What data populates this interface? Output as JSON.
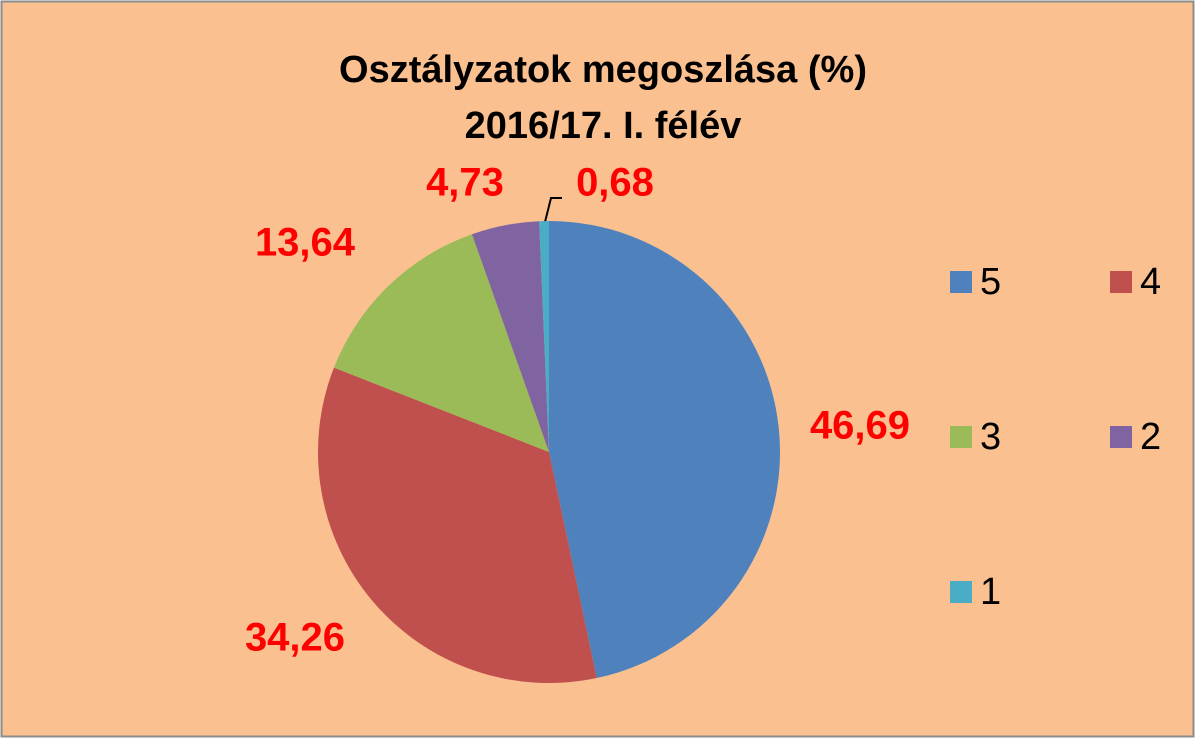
{
  "chart_data": {
    "type": "pie",
    "title": "Osztályzatok megoszlása  (%)",
    "subtitle": "2016/17. I. félév",
    "categories": [
      "5",
      "4",
      "3",
      "2",
      "1"
    ],
    "values": [
      46.69,
      34.26,
      13.64,
      4.73,
      0.68
    ],
    "value_labels": [
      "46,69",
      "34,26",
      "13,64",
      "4,73",
      "0,68"
    ],
    "colors": [
      "#4f81bd",
      "#c0504d",
      "#9bbb59",
      "#8064a2",
      "#4bacc6"
    ],
    "legend": "right"
  }
}
